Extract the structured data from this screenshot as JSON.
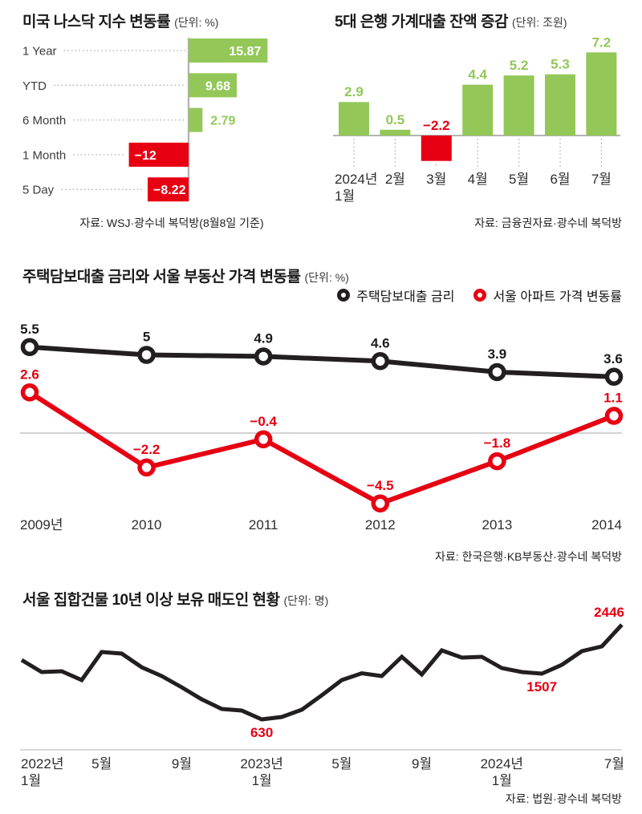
{
  "colors": {
    "positive_green": "#93c758",
    "negative_red": "#e60012",
    "line_black": "#231f20"
  },
  "chart_data": [
    {
      "id": "nasdaq-change",
      "type": "bar",
      "orientation": "horizontal",
      "title": "미국 나스닥 지수 변동률",
      "unit": "(단위: %)",
      "categories": [
        "1 Year",
        "YTD",
        "6 Month",
        "1 Month",
        "5 Day"
      ],
      "values": [
        15.87,
        9.68,
        2.79,
        -12,
        -8.22
      ],
      "grid": false,
      "source": "자료: WSJ·광수네 복덕방(8월8일 기준)"
    },
    {
      "id": "bank-household-loans",
      "type": "bar",
      "orientation": "vertical",
      "title": "5대 은행 가계대출 잔액 증감",
      "unit": "(단위: 조원)",
      "categories": [
        "2024년|1월",
        "2월",
        "3월",
        "4월",
        "5월",
        "6월",
        "7월"
      ],
      "values": [
        2.9,
        0.5,
        -2.2,
        4.4,
        5.2,
        5.3,
        7.2
      ],
      "grid": false,
      "source": "자료: 금융권자료·광수네 복덕방"
    },
    {
      "id": "mortgage-rate-vs-seoul-apartment",
      "type": "line",
      "title": "주택담보대출 금리와 서울 부동산 가격 변동률",
      "unit": "(단위: %)",
      "categories": [
        "2009년",
        "2010",
        "2011",
        "2012",
        "2013",
        "2014"
      ],
      "series": [
        {
          "name": "주택담보대출 금리",
          "color": "#231f20",
          "values": [
            5.5,
            5,
            4.9,
            4.6,
            3.9,
            3.6
          ]
        },
        {
          "name": "서울 아파트 가격 변동률",
          "color": "#e60012",
          "values": [
            2.6,
            -2.2,
            -0.4,
            -4.5,
            -1.8,
            1.1
          ]
        }
      ],
      "legend_position": "top-right",
      "zero_line": true,
      "grid": false,
      "source": "자료: 한국은행·KB부동산·광수네 복덕방"
    },
    {
      "id": "seoul-long-held-sellers",
      "type": "line",
      "title": "서울 집합건물 10년 이상 보유 매도인 현황",
      "unit": "(단위: 명)",
      "series_color": "#231f20",
      "x_labels": [
        {
          "index": 0,
          "text": "2022년|1월"
        },
        {
          "index": 4,
          "text": "5월"
        },
        {
          "index": 8,
          "text": "9월"
        },
        {
          "index": 12,
          "text": "2023년|1월"
        },
        {
          "index": 16,
          "text": "5월"
        },
        {
          "index": 20,
          "text": "9월"
        },
        {
          "index": 24,
          "text": "2024년|1월"
        },
        {
          "index": 30,
          "text": "7월"
        }
      ],
      "values": [
        1769,
        1538,
        1553,
        1384,
        1923,
        1892,
        1630,
        1461,
        1246,
        1015,
        830,
        799,
        630,
        676,
        815,
        1092,
        1384,
        1515,
        1461,
        1830,
        1492,
        1954,
        1815,
        1830,
        1615,
        1538,
        1507,
        1677,
        1938,
        2031,
        2446
      ],
      "annotations": [
        {
          "index": 12,
          "label": "630",
          "position": "below"
        },
        {
          "index": 26,
          "label": "1507",
          "position": "below"
        },
        {
          "index": 30,
          "label": "2446",
          "position": "above"
        }
      ],
      "grid": false,
      "source": "자료: 법원·광수네 복덕방"
    }
  ]
}
